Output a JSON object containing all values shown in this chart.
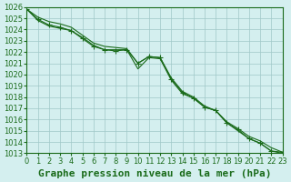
{
  "title": "Graphe pression niveau de la mer (hPa)",
  "background_color": "#d4efef",
  "grid_color": "#a0c8c8",
  "line_color": "#1a6b1a",
  "xlim": [
    0,
    23
  ],
  "ylim": [
    1013,
    1026
  ],
  "xticks": [
    0,
    1,
    2,
    3,
    4,
    5,
    6,
    7,
    8,
    9,
    10,
    11,
    12,
    13,
    14,
    15,
    16,
    17,
    18,
    19,
    20,
    21,
    22,
    23
  ],
  "yticks": [
    1013,
    1014,
    1015,
    1016,
    1017,
    1018,
    1019,
    1020,
    1021,
    1022,
    1023,
    1024,
    1025,
    1026
  ],
  "series1_x": [
    0,
    1,
    2,
    3,
    4,
    5,
    6,
    7,
    8,
    9,
    10,
    11,
    12,
    13,
    14,
    15,
    16,
    17,
    18,
    19,
    20,
    21,
    22,
    23
  ],
  "series1_y": [
    1025.8,
    1025.1,
    1024.7,
    1024.5,
    1024.2,
    1023.5,
    1022.8,
    1022.5,
    1022.4,
    1022.3,
    1021.0,
    1021.6,
    1021.5,
    1019.7,
    1018.5,
    1018.0,
    1017.2,
    1016.8,
    1015.8,
    1015.2,
    1014.5,
    1014.1,
    1013.5,
    1013.1
  ],
  "series2_x": [
    0,
    1,
    2,
    3,
    4,
    5,
    6,
    7,
    8,
    9,
    10,
    11,
    12,
    13,
    14,
    15,
    16,
    17,
    18,
    19,
    20,
    21,
    22,
    23
  ],
  "series2_y": [
    1025.8,
    1024.8,
    1024.3,
    1024.1,
    1023.9,
    1023.3,
    1022.6,
    1022.2,
    1022.2,
    1022.2,
    1020.5,
    1021.5,
    1021.4,
    1019.5,
    1018.3,
    1017.9,
    1017.1,
    1016.8,
    1015.7,
    1015.0,
    1014.3,
    1013.9,
    1013.2,
    1013.0
  ],
  "series3_x": [
    0,
    1,
    2,
    3,
    4,
    5,
    6,
    7,
    8,
    9,
    10,
    11,
    12,
    13,
    14,
    15,
    16,
    17,
    18,
    19,
    20,
    21,
    22,
    23
  ],
  "series3_y": [
    1025.8,
    1024.9,
    1024.4,
    1024.2,
    1023.9,
    1023.2,
    1022.5,
    1022.2,
    1022.1,
    1022.2,
    1021.0,
    1021.6,
    1021.5,
    1019.6,
    1018.4,
    1017.9,
    1017.1,
    1016.8,
    1015.7,
    1015.1,
    1014.3,
    1013.9,
    1013.2,
    1013.1
  ],
  "title_fontsize": 8,
  "tick_fontsize": 6
}
